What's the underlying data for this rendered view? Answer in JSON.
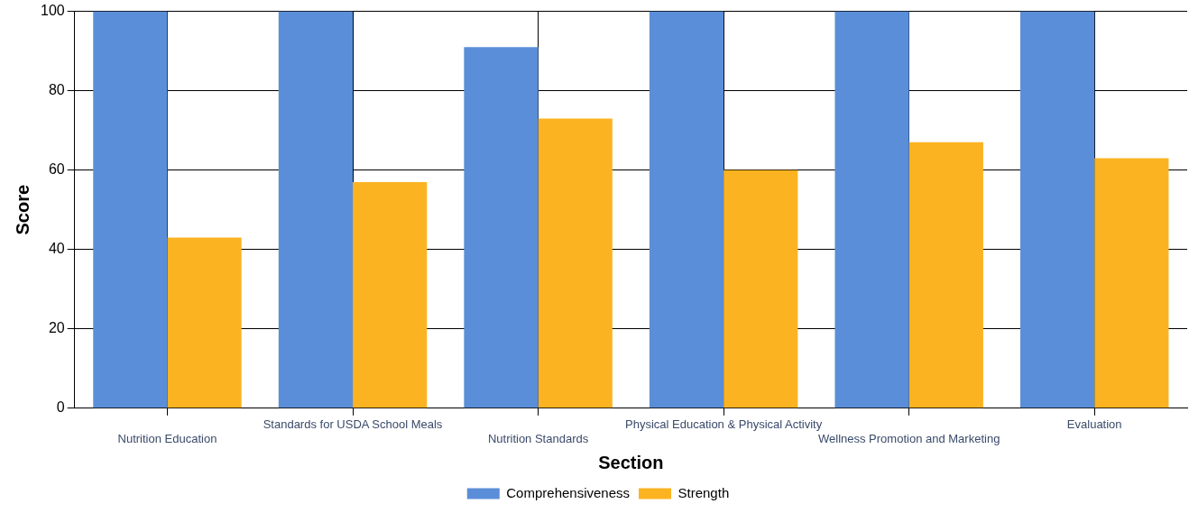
{
  "chart_data": {
    "type": "bar",
    "xlabel": "Section",
    "ylabel": "Score",
    "categories": [
      "Nutrition Education",
      "Standards for USDA School Meals",
      "Nutrition Standards",
      "Physical Education & Physical Activity",
      "Wellness Promotion and Marketing",
      "Evaluation"
    ],
    "series": [
      {
        "name": "Comprehensiveness",
        "color": "#5b8ed8",
        "values": [
          100,
          100,
          91,
          100,
          100,
          100
        ]
      },
      {
        "name": "Strength",
        "color": "#fbb321",
        "values": [
          43,
          57,
          73,
          60,
          67,
          63
        ]
      }
    ],
    "ylim": [
      0,
      100
    ],
    "yticks": [
      0,
      20,
      40,
      60,
      80,
      100
    ],
    "grid": true,
    "legend": "bottom"
  }
}
